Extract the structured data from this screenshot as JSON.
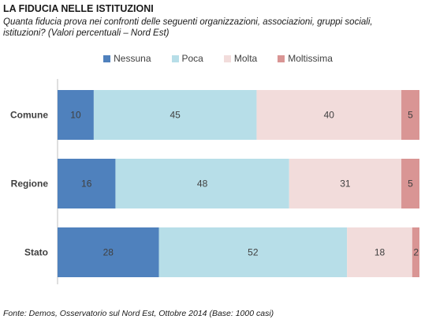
{
  "title": "LA FIDUCIA NELLE ISTITUZIONI",
  "subtitle": "Quanta fiducia prova nei confronti delle seguenti organizzazioni, associazioni, gruppi sociali, istituzioni? (Valori percentuali – Nord Est)",
  "source": "Fonte: Demos, Osservatorio sul Nord Est, Ottobre 2014 (Base: 1000 casi)",
  "chart_data": {
    "type": "bar",
    "orientation": "horizontal",
    "stacked": true,
    "categories": [
      "Comune",
      "Regione",
      "Stato"
    ],
    "series": [
      {
        "name": "Nessuna",
        "color": "#4f81bd",
        "values": [
          10,
          16,
          28
        ]
      },
      {
        "name": "Poca",
        "color": "#b7dee8",
        "values": [
          45,
          48,
          52
        ]
      },
      {
        "name": "Molta",
        "color": "#f2dcdb",
        "values": [
          40,
          31,
          18
        ]
      },
      {
        "name": "Moltissima",
        "color": "#d99594",
        "values": [
          5,
          5,
          2
        ]
      }
    ],
    "xlim": [
      0,
      100
    ],
    "legend_position": "top",
    "grid": false
  }
}
